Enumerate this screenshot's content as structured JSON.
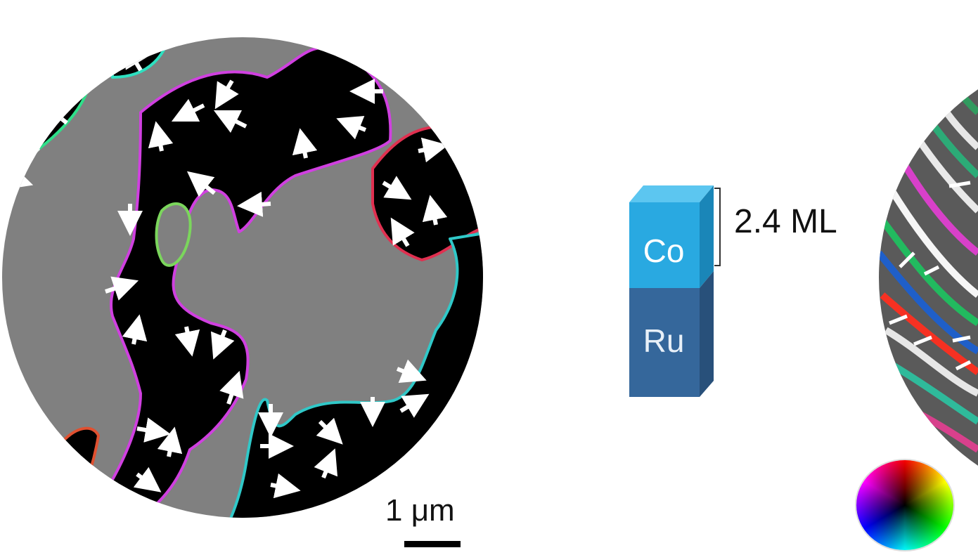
{
  "scale_bar": {
    "label": "1 μm"
  },
  "layer_stack": {
    "top_layer": "Co",
    "bottom_layer": "Ru",
    "thickness_label": "2.4 ML",
    "colors": {
      "co_face": "#29a9e1",
      "co_top": "#5cc6f0",
      "co_side": "#1a86b8",
      "ru_face": "#35679b",
      "ru_side": "#28507a"
    }
  },
  "color_wheel": {
    "icon": "hue-color-wheel-icon"
  }
}
